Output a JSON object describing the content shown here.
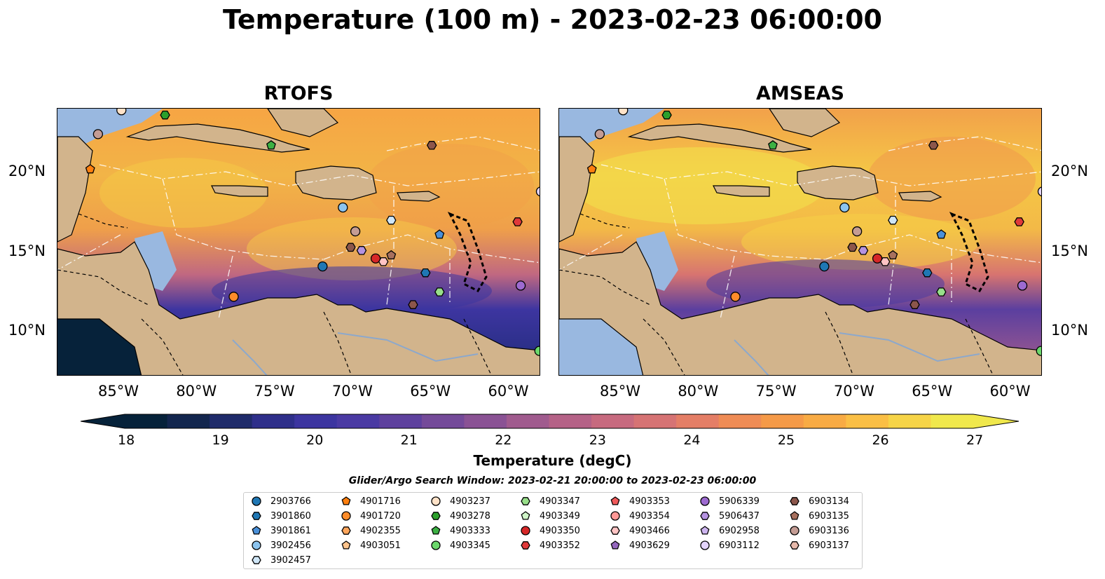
{
  "title": "Temperature (100 m) - 2023-02-23 06:00:00",
  "panels": [
    {
      "title": "RTOFS",
      "style": "rtofs"
    },
    {
      "title": "AMSEAS",
      "style": "amseas"
    }
  ],
  "axes": {
    "lon_ticks": [
      "85°W",
      "80°W",
      "75°W",
      "70°W",
      "65°W",
      "60°W"
    ],
    "lat_ticks": [
      "20°N",
      "15°N",
      "10°N"
    ]
  },
  "colorbar": {
    "label": "Temperature (degC)",
    "ticks": [
      "18",
      "19",
      "20",
      "21",
      "22",
      "23",
      "24",
      "25",
      "26",
      "27"
    ],
    "colors": [
      "#06223a",
      "#13264e",
      "#1f2b6a",
      "#2e2f8a",
      "#3c35a0",
      "#4a3aa3",
      "#5e419e",
      "#744a99",
      "#8a5294",
      "#a05b8e",
      "#b56287",
      "#c76a7f",
      "#d67374",
      "#e47e66",
      "#ef8c55",
      "#f59a48",
      "#f8ab44",
      "#fabf45",
      "#f6d447",
      "#f0e84c"
    ],
    "extend": "both"
  },
  "legend": {
    "title": "Glider/Argo Search Window: 2023-02-21 20:00:00 to 2023-02-23 06:00:00",
    "items": [
      {
        "id": "2903766",
        "color": "#1f77b4",
        "shape": "circle"
      },
      {
        "id": "3901860",
        "color": "#1f77b4",
        "shape": "hexagon"
      },
      {
        "id": "3901861",
        "color": "#4a90d9",
        "shape": "pentagon"
      },
      {
        "id": "3902456",
        "color": "#8cc4ef",
        "shape": "circle"
      },
      {
        "id": "3902457",
        "color": "#cfe6f7",
        "shape": "hexagon"
      },
      {
        "id": "4901716",
        "color": "#ff7f0e",
        "shape": "pentagon"
      },
      {
        "id": "4901720",
        "color": "#ff8c2a",
        "shape": "circle"
      },
      {
        "id": "4902355",
        "color": "#ffa65c",
        "shape": "hexagon"
      },
      {
        "id": "4903051",
        "color": "#ffc48c",
        "shape": "pentagon"
      },
      {
        "id": "4903237",
        "color": "#ffe2c8",
        "shape": "circle"
      },
      {
        "id": "4903278",
        "color": "#2ca02c",
        "shape": "hexagon"
      },
      {
        "id": "4903333",
        "color": "#3cb043",
        "shape": "pentagon"
      },
      {
        "id": "4903345",
        "color": "#6cd86c",
        "shape": "circle"
      },
      {
        "id": "4903347",
        "color": "#98df8a",
        "shape": "hexagon"
      },
      {
        "id": "4903349",
        "color": "#d0f5c8",
        "shape": "pentagon"
      },
      {
        "id": "4903350",
        "color": "#d62728",
        "shape": "circle"
      },
      {
        "id": "4903352",
        "color": "#e0393a",
        "shape": "hexagon"
      },
      {
        "id": "4903353",
        "color": "#f05a5b",
        "shape": "pentagon"
      },
      {
        "id": "4903354",
        "color": "#ff9896",
        "shape": "circle"
      },
      {
        "id": "4903466",
        "color": "#ffc4c4",
        "shape": "hexagon"
      },
      {
        "id": "4903629",
        "color": "#9467bd",
        "shape": "pentagon"
      },
      {
        "id": "5906339",
        "color": "#9d6ad0",
        "shape": "circle"
      },
      {
        "id": "5906437",
        "color": "#b592e0",
        "shape": "hexagon"
      },
      {
        "id": "6902958",
        "color": "#cdb4ef",
        "shape": "pentagon"
      },
      {
        "id": "6903112",
        "color": "#e4d4fb",
        "shape": "circle"
      },
      {
        "id": "6903134",
        "color": "#8c564b",
        "shape": "hexagon"
      },
      {
        "id": "6903135",
        "color": "#a7705e",
        "shape": "pentagon"
      },
      {
        "id": "6903136",
        "color": "#c49c94",
        "shape": "circle"
      },
      {
        "id": "6903137",
        "color": "#e6b8aa",
        "shape": "hexagon"
      }
    ]
  },
  "land_color": "#d2b48c",
  "water_color": "#99b8e0",
  "markers": [
    {
      "id": "4903237",
      "lon": -84.9,
      "lat": 23.9
    },
    {
      "id": "4903278",
      "lon": -82.1,
      "lat": 23.6
    },
    {
      "id": "6903136",
      "lon": -86.4,
      "lat": 22.4
    },
    {
      "id": "4903333",
      "lon": -75.3,
      "lat": 21.7
    },
    {
      "id": "6903134",
      "lon": -65.0,
      "lat": 21.7
    },
    {
      "id": "4901716",
      "lon": -86.9,
      "lat": 20.2
    },
    {
      "id": "6903112",
      "lon": -58.0,
      "lat": 18.8
    },
    {
      "id": "3902456",
      "lon": -70.7,
      "lat": 17.8
    },
    {
      "id": "3902457",
      "lon": -67.6,
      "lat": 17.0
    },
    {
      "id": "4903352",
      "lon": -59.5,
      "lat": 16.9
    },
    {
      "id": "6903136",
      "lon": -69.9,
      "lat": 16.3
    },
    {
      "id": "3901861",
      "lon": -64.5,
      "lat": 16.1
    },
    {
      "id": "6903134",
      "lon": -70.2,
      "lat": 15.3
    },
    {
      "id": "5906437",
      "lon": -69.5,
      "lat": 15.1
    },
    {
      "id": "6903135",
      "lon": -67.6,
      "lat": 14.8
    },
    {
      "id": "4903350",
      "lon": -68.6,
      "lat": 14.6
    },
    {
      "id": "4903466",
      "lon": -68.1,
      "lat": 14.4
    },
    {
      "id": "2903766",
      "lon": -72.0,
      "lat": 14.1
    },
    {
      "id": "3901860",
      "lon": -65.4,
      "lat": 13.7
    },
    {
      "id": "5906339",
      "lon": -59.3,
      "lat": 12.9
    },
    {
      "id": "4903347",
      "lon": -64.5,
      "lat": 12.5
    },
    {
      "id": "4901720",
      "lon": -77.7,
      "lat": 12.2
    },
    {
      "id": "6903134",
      "lon": -66.2,
      "lat": 11.7
    },
    {
      "id": "4903345",
      "lon": -58.1,
      "lat": 8.8
    }
  ]
}
